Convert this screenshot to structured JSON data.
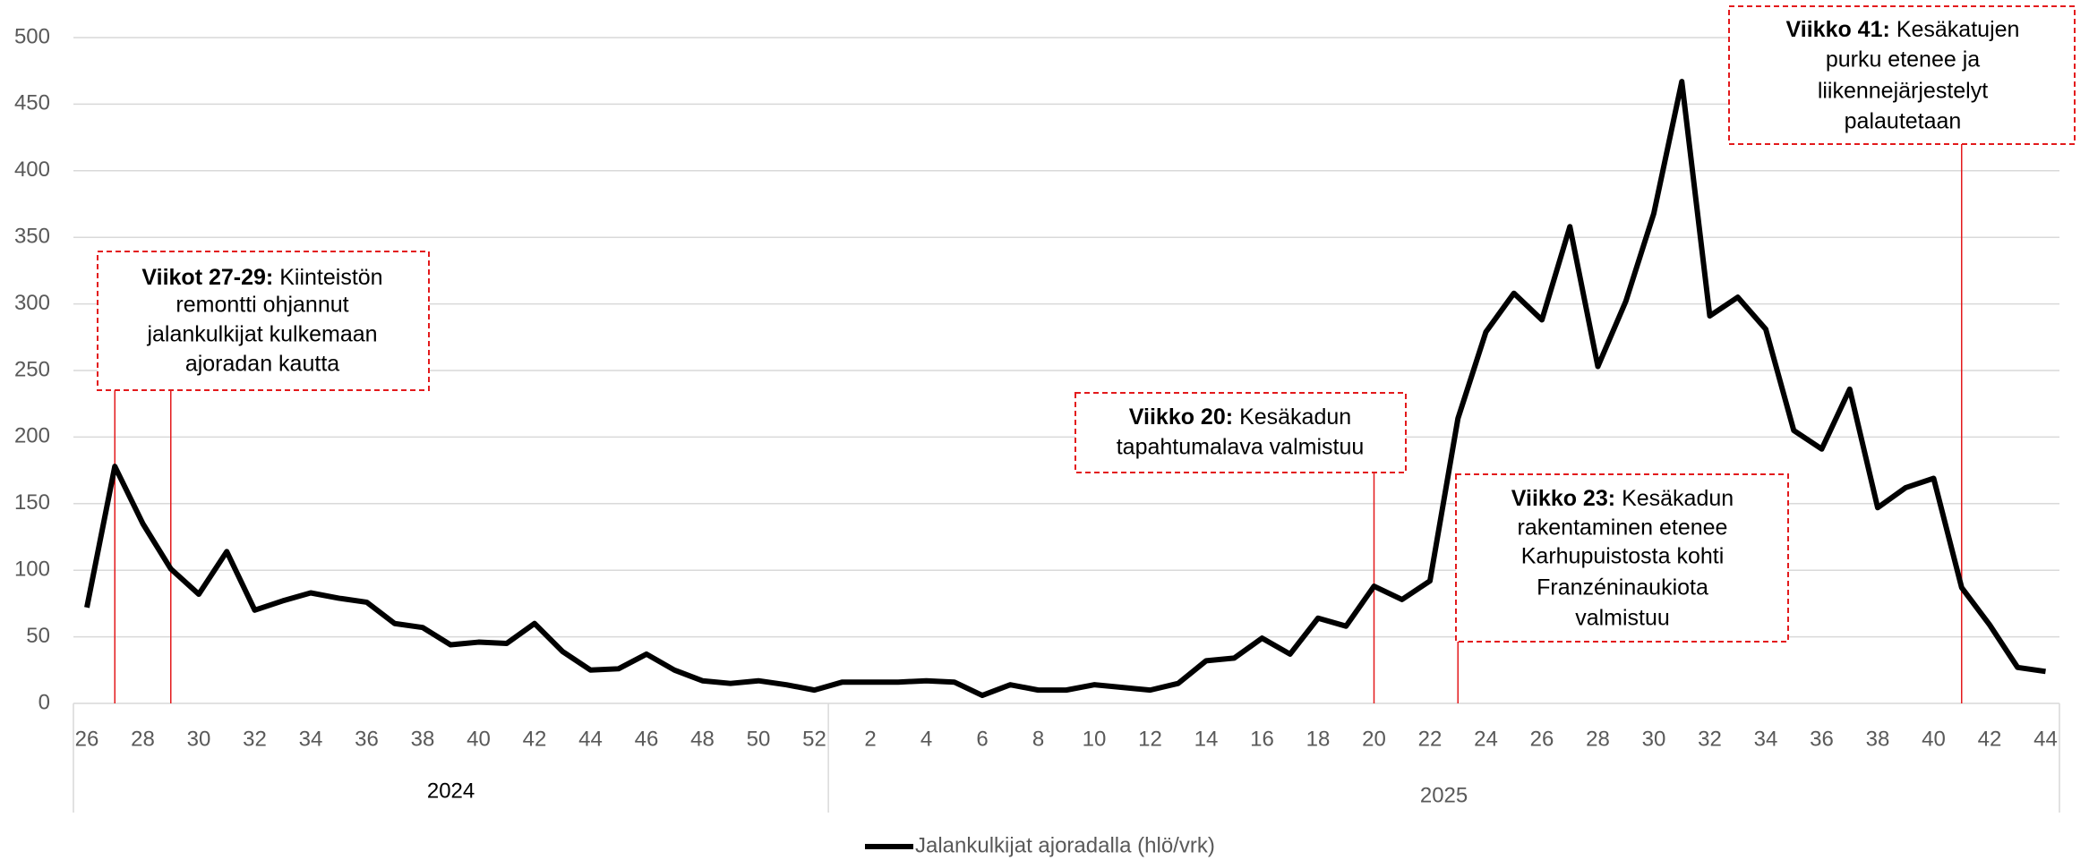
{
  "chart_data": {
    "type": "line",
    "categories": [
      "26",
      null,
      "28",
      null,
      "30",
      null,
      "32",
      null,
      "34",
      null,
      "36",
      null,
      "38",
      null,
      "40",
      null,
      "42",
      null,
      "44",
      null,
      "46",
      null,
      "48",
      null,
      "50",
      null,
      "52",
      null,
      "2",
      null,
      "4",
      null,
      "6",
      null,
      "8",
      null,
      "10",
      null,
      "12",
      null,
      "14",
      null,
      "16",
      null,
      "18",
      null,
      "20",
      null,
      "22",
      null,
      "24",
      null,
      "26",
      null,
      "28",
      null,
      "30",
      null,
      "32",
      null,
      "34",
      null,
      "36",
      null,
      "38",
      null,
      "40",
      null,
      "42",
      null,
      "44"
    ],
    "groups": [
      {
        "label": "2024",
        "count": 27
      },
      {
        "label": "2025",
        "count": 44
      }
    ],
    "series": [
      {
        "name": "Jalankulkijat ajoradalla (hlö/vrk)",
        "color": "#000000",
        "values": [
          72,
          178,
          135,
          101,
          82,
          114,
          70,
          77,
          83,
          79,
          76,
          60,
          57,
          44,
          46,
          45,
          60,
          39,
          25,
          26,
          37,
          25,
          17,
          15,
          17,
          14,
          10,
          16,
          16,
          16,
          17,
          16,
          6,
          14,
          10,
          10,
          14,
          12,
          10,
          15,
          32,
          34,
          49,
          37,
          64,
          58,
          88,
          78,
          92,
          214,
          279,
          308,
          288,
          358,
          253,
          302,
          368,
          467,
          291,
          305,
          281,
          205,
          191,
          236,
          147,
          162,
          169,
          87,
          59,
          27,
          24
        ]
      }
    ],
    "ylim": [
      0,
      500
    ],
    "yticks": [
      0,
      50,
      100,
      150,
      200,
      250,
      300,
      350,
      400,
      450,
      500
    ],
    "grid": true,
    "legend": "bottom",
    "annotations": [
      {
        "label": "Viikot 27-29:",
        "lines": [
          "Kiinteistön",
          "remontti ohjannut",
          "jalankulkijat kulkemaan",
          "ajoradan kautta"
        ]
      },
      {
        "label": "Viikko 20:",
        "lines": [
          "Kesäkadun",
          "tapahtumalava valmistuu"
        ]
      },
      {
        "label": "Viikko 23:",
        "lines": [
          "Kesäkadun",
          "rakentaminen etenee",
          "Karhupuistosta kohti",
          "Franzéninaukiota",
          "valmistuu"
        ]
      },
      {
        "label": "Viikko 41:",
        "lines": [
          "Kesäkatujen",
          "purku etenee ja",
          "liikennejärjestelyt",
          "palautetaan"
        ]
      }
    ]
  }
}
